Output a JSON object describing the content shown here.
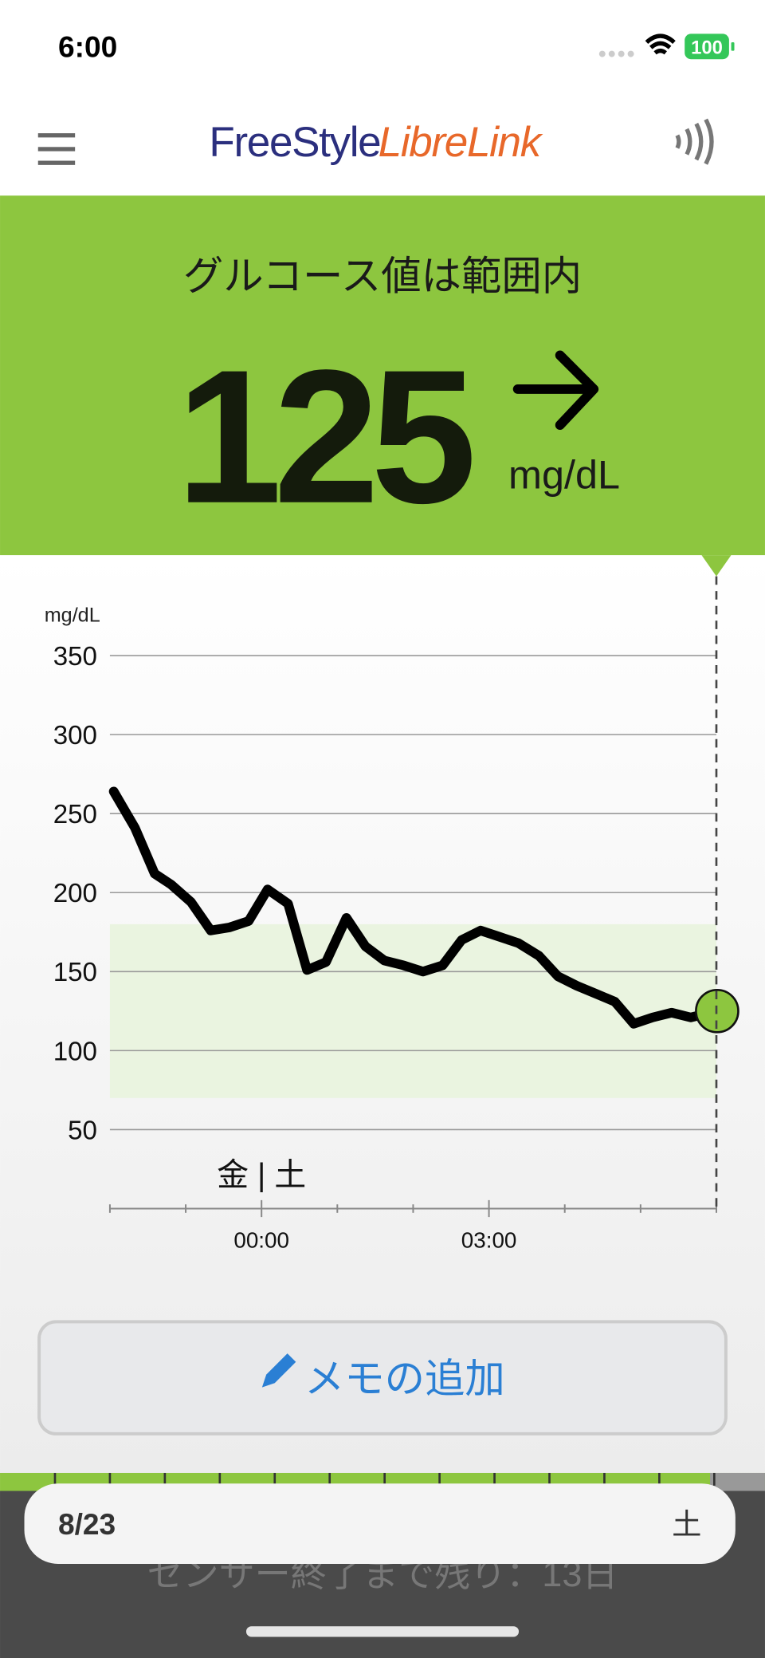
{
  "status_bar": {
    "time": "6:00",
    "battery": "100"
  },
  "header": {
    "logo_brand": "FreeStyle",
    "logo_product": "LibreLink"
  },
  "banner": {
    "status": "グルコース値は範囲内",
    "value": "125",
    "unit": "mg/dL"
  },
  "chart_data": {
    "type": "line",
    "y_unit": "mg/dL",
    "day_label": "金 | 土",
    "x": [
      -1.95,
      -1.67,
      -1.41,
      -1.19,
      -0.93,
      -0.67,
      -0.42,
      -0.17,
      0.08,
      0.35,
      0.6,
      0.85,
      1.12,
      1.37,
      1.62,
      1.87,
      2.13,
      2.39,
      2.64,
      2.89,
      3.14,
      3.39,
      3.66,
      3.91,
      4.16,
      4.41,
      4.66,
      4.91,
      5.16,
      5.41,
      5.66,
      6.01
    ],
    "series": [
      {
        "color": "#000000",
        "values": [
          264,
          241,
          212,
          205,
          194,
          176,
          178,
          182,
          202,
          193,
          151,
          156,
          184,
          166,
          157,
          154,
          150,
          154,
          170,
          176,
          172,
          168,
          160,
          147,
          141,
          136,
          131,
          117,
          121,
          124,
          121,
          125
        ]
      }
    ],
    "xlim": [
      -2,
      6
    ],
    "xticks": [
      {
        "value": 0,
        "label": "00:00"
      },
      {
        "value": 3,
        "label": "03:00"
      }
    ],
    "minor_xticks": [
      -2,
      -1,
      1,
      2,
      4,
      5,
      6
    ],
    "ylim": [
      0,
      350
    ],
    "yticks": [
      50,
      100,
      150,
      200,
      250,
      300,
      350
    ],
    "target_range": [
      70,
      180
    ],
    "target_color": "#eaf4e0",
    "current_color": "#8dc63f",
    "grid": true
  },
  "memo_button": {
    "label": "メモの追加"
  },
  "footer": {
    "date": "8/23",
    "weekday": "土",
    "sensor_notice": "センサー終了まで残り：13日"
  }
}
